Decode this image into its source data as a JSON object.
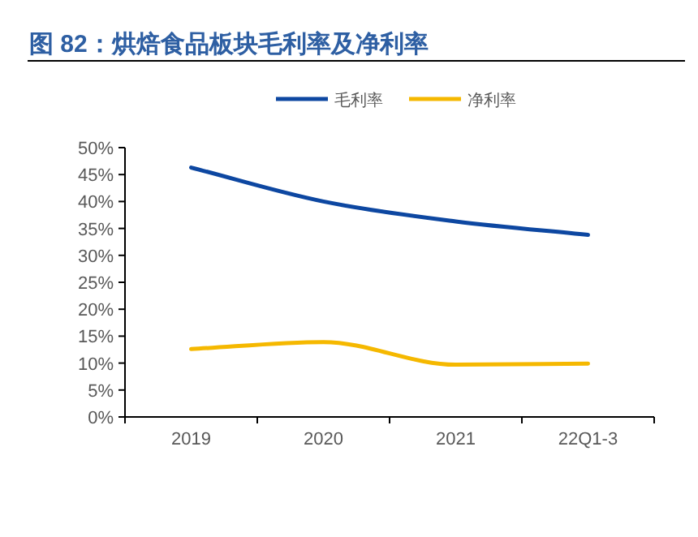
{
  "chart_data": {
    "type": "line",
    "title": "图 82：烘焙食品板块毛利率及净利率",
    "categories": [
      "2019",
      "2020",
      "2021",
      "22Q1-3"
    ],
    "series": [
      {
        "name": "毛利率",
        "color": "#0d47a1",
        "values": [
          46.3,
          40.0,
          36.3,
          33.8
        ]
      },
      {
        "name": "净利率",
        "color": "#f5b800",
        "values": [
          12.6,
          13.9,
          9.7,
          9.9
        ]
      }
    ],
    "ylim": [
      0,
      50
    ],
    "yticks": [
      {
        "value": 0,
        "label": "0%"
      },
      {
        "value": 5,
        "label": "5%"
      },
      {
        "value": 10,
        "label": "10%"
      },
      {
        "value": 15,
        "label": "15%"
      },
      {
        "value": 20,
        "label": "20%"
      },
      {
        "value": 25,
        "label": "25%"
      },
      {
        "value": 30,
        "label": "30%"
      },
      {
        "value": 35,
        "label": "35%"
      },
      {
        "value": 40,
        "label": "40%"
      },
      {
        "value": 45,
        "label": "45%"
      },
      {
        "value": 50,
        "label": "50%"
      }
    ],
    "grid": false,
    "legend": "top",
    "marker": "none",
    "line_style": "solid"
  }
}
